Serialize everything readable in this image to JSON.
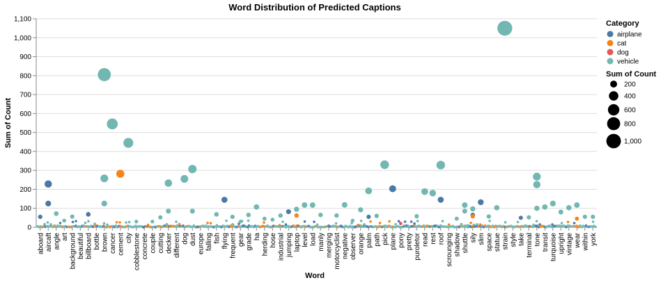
{
  "chart_data": {
    "type": "scatter",
    "title": "Word Distribution of Predicted Captions",
    "xlabel": "Word",
    "ylabel": "Sum of Count",
    "ylim": [
      0,
      1100
    ],
    "yticks": [
      0,
      100,
      200,
      300,
      400,
      500,
      600,
      700,
      800,
      900,
      1000,
      1100
    ],
    "ytick_labels": [
      "0",
      "100",
      "200",
      "300",
      "400",
      "500",
      "600",
      "700",
      "800",
      "900",
      "1,000",
      "1,100"
    ],
    "grid": true,
    "legend_position": "right",
    "categories": [
      "aboard",
      "aircaft",
      "angle",
      "art",
      "background",
      "beautiful",
      "billboard",
      "bottle",
      "brown",
      "cancer",
      "cement",
      "city",
      "cobblestone",
      "concrete",
      "couple",
      "cutting",
      "decker",
      "different",
      "dog",
      "dust",
      "europe",
      "falling",
      "fish",
      "flying",
      "frequent",
      "gear",
      "grade",
      "ha",
      "herding",
      "hose",
      "industrial",
      "jumping",
      "laptop",
      "level",
      "load",
      "manly",
      "merging",
      "motorcyclist",
      "negative",
      "observer",
      "orange",
      "palm",
      "path",
      "pick",
      "plane",
      "pony",
      "pretty",
      "puroletor",
      "read",
      "rest",
      "roof",
      "scrounging",
      "shadow",
      "shuttle",
      "sily",
      "slim",
      "space",
      "statue",
      "strain",
      "style",
      "take",
      "terminal",
      "tone",
      "transit",
      "turquoise",
      "upright",
      "vintage",
      "wear",
      "within",
      "york"
    ],
    "legend": {
      "color_title": "Category",
      "color_entries": [
        {
          "name": "airplane",
          "color": "#4c78a8"
        },
        {
          "name": "cat",
          "color": "#f58518"
        },
        {
          "name": "dog",
          "color": "#e45756"
        },
        {
          "name": "vehicle",
          "color": "#72b7b2"
        }
      ],
      "size_title": "Sum of Count",
      "size_entries": [
        200,
        400,
        600,
        800,
        1000
      ],
      "size_labels": [
        "200",
        "400",
        "600",
        "800",
        "1,000"
      ]
    },
    "series": [
      {
        "name": "vehicle",
        "color": "#72b7b2",
        "points": [
          {
            "x": "brown",
            "y": 805
          },
          {
            "x": "cancer",
            "y": 545
          },
          {
            "x": "city",
            "y": 445
          },
          {
            "x": "strain",
            "y": 1050
          },
          {
            "x": "pick",
            "y": 330
          },
          {
            "x": "roof",
            "y": 328
          },
          {
            "x": "dust",
            "y": 307
          },
          {
            "x": "tone",
            "y": 267
          },
          {
            "x": "brown",
            "y": 258
          },
          {
            "x": "dog",
            "y": 255
          },
          {
            "x": "decker",
            "y": 233
          },
          {
            "x": "tone",
            "y": 225
          },
          {
            "x": "palm",
            "y": 192
          },
          {
            "x": "read",
            "y": 188
          },
          {
            "x": "rest",
            "y": 180
          },
          {
            "x": "brown",
            "y": 125
          },
          {
            "x": "turquoise",
            "y": 125
          },
          {
            "x": "shuttle",
            "y": 117
          },
          {
            "x": "level",
            "y": 117
          },
          {
            "x": "load",
            "y": 117
          },
          {
            "x": "negative",
            "y": 118
          },
          {
            "x": "wear",
            "y": 117
          },
          {
            "x": "ha",
            "y": 107
          },
          {
            "x": "transit",
            "y": 107
          },
          {
            "x": "vintage",
            "y": 103
          },
          {
            "x": "statue",
            "y": 103
          },
          {
            "x": "tone",
            "y": 100
          },
          {
            "x": "sily",
            "y": 97
          },
          {
            "x": "laptop",
            "y": 95
          },
          {
            "x": "orange",
            "y": 92
          },
          {
            "x": "decker",
            "y": 85
          },
          {
            "x": "dust",
            "y": 85
          },
          {
            "x": "shuttle",
            "y": 85
          },
          {
            "x": "upright",
            "y": 80
          },
          {
            "x": "angle",
            "y": 72
          },
          {
            "x": "billboard",
            "y": 68
          },
          {
            "x": "fish",
            "y": 68
          },
          {
            "x": "grade",
            "y": 65
          },
          {
            "x": "manly",
            "y": 65
          },
          {
            "x": "motorcyclist",
            "y": 62
          },
          {
            "x": "industrial",
            "y": 62
          },
          {
            "x": "path",
            "y": 60
          },
          {
            "x": "puroletor",
            "y": 58
          },
          {
            "x": "space",
            "y": 57
          },
          {
            "x": "background",
            "y": 56
          },
          {
            "x": "cutting",
            "y": 52
          },
          {
            "x": "terminal",
            "y": 52
          },
          {
            "x": "within",
            "y": 55
          },
          {
            "x": "york",
            "y": 55
          },
          {
            "x": "frequent",
            "y": 55
          },
          {
            "x": "herding",
            "y": 45
          },
          {
            "x": "shadow",
            "y": 45
          },
          {
            "x": "hose",
            "y": 40
          },
          {
            "x": "art",
            "y": 35
          },
          {
            "x": "cobblestone",
            "y": 30
          },
          {
            "x": "observer",
            "y": 35
          },
          {
            "x": "couple",
            "y": 30
          },
          {
            "x": "gear",
            "y": 30
          }
        ]
      },
      {
        "name": "airplane",
        "color": "#4c78a8",
        "points": [
          {
            "x": "aircaft",
            "y": 228
          },
          {
            "x": "plane",
            "y": 203
          },
          {
            "x": "flying",
            "y": 145
          },
          {
            "x": "roof",
            "y": 145
          },
          {
            "x": "slim",
            "y": 132
          },
          {
            "x": "aircaft",
            "y": 125
          },
          {
            "x": "jumping",
            "y": 82
          },
          {
            "x": "billboard",
            "y": 68
          },
          {
            "x": "sily",
            "y": 65
          },
          {
            "x": "palm",
            "y": 55
          },
          {
            "x": "aboard",
            "y": 55
          },
          {
            "x": "take",
            "y": 50
          }
        ]
      },
      {
        "name": "cat",
        "color": "#f58518",
        "points": [
          {
            "x": "cement",
            "y": 282
          },
          {
            "x": "laptop",
            "y": 62
          },
          {
            "x": "sily",
            "y": 58
          },
          {
            "x": "wear",
            "y": 45
          }
        ]
      },
      {
        "name": "dog",
        "color": "#e45756",
        "points": [
          {
            "x": "pony",
            "y": 20
          }
        ]
      }
    ]
  }
}
